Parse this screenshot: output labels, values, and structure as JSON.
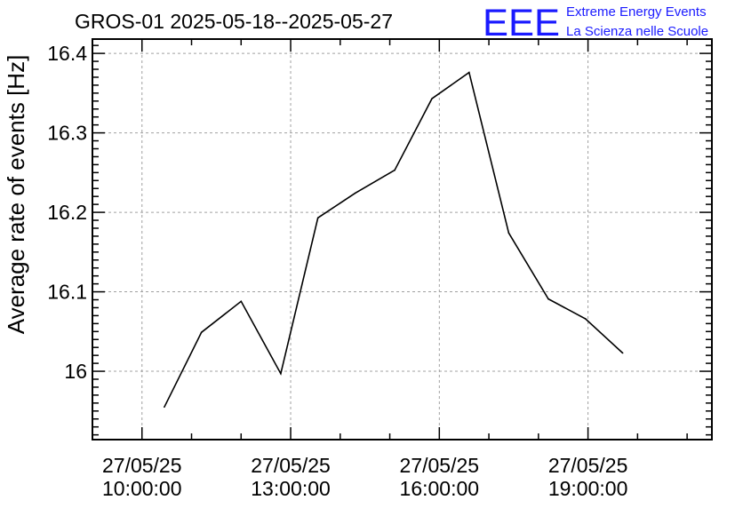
{
  "header": {
    "title": "GROS-01 2025-05-18--2025-05-27"
  },
  "logo": {
    "mark": "EEE",
    "line1": "Extreme Energy Events",
    "line2": "La Scienza nelle Scuole",
    "color": "#1a1aff"
  },
  "chart_data": {
    "type": "line",
    "title": "GROS-01 2025-05-18--2025-05-27",
    "xlabel": "",
    "ylabel": "Average rate of events [Hz]",
    "x_unit": "hours on 27/05/25",
    "xlim": [
      9.0,
      21.5
    ],
    "ylim": [
      15.914,
      16.418
    ],
    "grid": true,
    "yticks": [
      16.0,
      16.1,
      16.2,
      16.3,
      16.4
    ],
    "ytick_labels": [
      "16",
      "16.1",
      "16.2",
      "16.3",
      "16.4"
    ],
    "xticks": [
      {
        "x": 10,
        "date": "27/05/25",
        "time": "10:00:00"
      },
      {
        "x": 13,
        "date": "27/05/25",
        "time": "13:00:00"
      },
      {
        "x": 16,
        "date": "27/05/25",
        "time": "16:00:00"
      },
      {
        "x": 19,
        "date": "27/05/25",
        "time": "19:00:00"
      }
    ],
    "x_minor_ticks": [
      11,
      12,
      14,
      15,
      17,
      18,
      20,
      21
    ],
    "series": [
      {
        "x": [
          10.45,
          11.2,
          12.0,
          12.8,
          13.55,
          14.3,
          15.1,
          15.85,
          16.6,
          17.4,
          18.2,
          18.95,
          19.7
        ],
        "y": [
          15.955,
          16.049,
          16.088,
          15.997,
          16.193,
          16.224,
          16.253,
          16.343,
          16.376,
          16.174,
          16.091,
          16.066,
          16.023
        ]
      }
    ]
  }
}
